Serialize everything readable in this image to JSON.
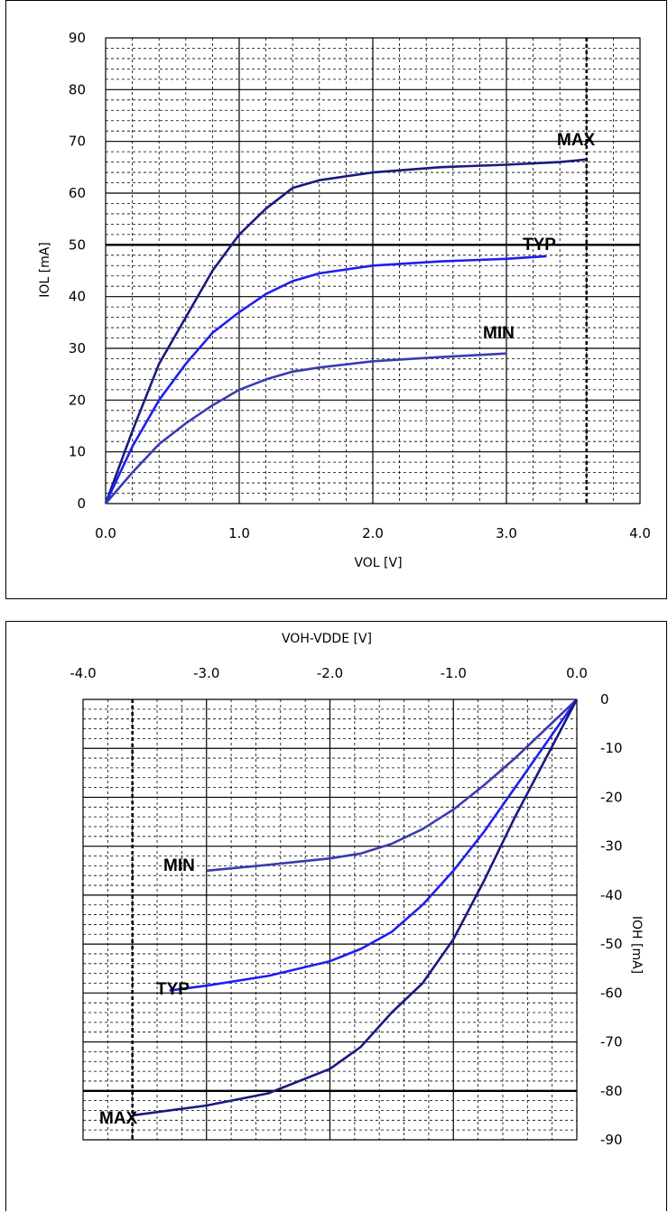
{
  "chart_data": [
    {
      "type": "line",
      "xlabel": "VOL [V]",
      "ylabel": "IOL [mA]",
      "xlim": [
        0,
        4.0
      ],
      "ylim": [
        0,
        90
      ],
      "xticks": [
        "0.0",
        "1.0",
        "2.0",
        "3.0",
        "4.0"
      ],
      "yticks": [
        "0",
        "10",
        "20",
        "30",
        "40",
        "50",
        "60",
        "70",
        "80",
        "90"
      ],
      "grid": true,
      "series": [
        {
          "name": "MAX",
          "color": "#1a1a80",
          "x": [
            0,
            0.2,
            0.4,
            0.6,
            0.8,
            1.0,
            1.2,
            1.4,
            1.6,
            2.0,
            2.5,
            3.0,
            3.4,
            3.6
          ],
          "y": [
            0,
            14,
            27,
            36,
            45,
            52,
            57,
            61,
            62.5,
            64,
            65,
            65.5,
            66,
            66.5
          ]
        },
        {
          "name": "TYP",
          "color": "#1f1ff0",
          "x": [
            0,
            0.2,
            0.4,
            0.6,
            0.8,
            1.0,
            1.2,
            1.4,
            1.6,
            2.0,
            2.5,
            3.0,
            3.3
          ],
          "y": [
            0,
            11,
            20,
            27,
            33,
            37,
            40.5,
            43,
            44.5,
            46,
            46.8,
            47.3,
            47.8
          ]
        },
        {
          "name": "MIN",
          "color": "#3b3bb0",
          "x": [
            0,
            0.2,
            0.4,
            0.6,
            0.8,
            1.0,
            1.2,
            1.4,
            1.6,
            2.0,
            2.5,
            3.0
          ],
          "y": [
            0,
            6,
            11.5,
            15.5,
            19,
            22,
            24,
            25.5,
            26.3,
            27.5,
            28.3,
            29
          ]
        }
      ]
    },
    {
      "type": "line",
      "xlabel": "VOH-VDDE [V]",
      "ylabel": "IOH [mA]",
      "xlim": [
        -4.0,
        0.0
      ],
      "ylim": [
        -90,
        0
      ],
      "xticks": [
        "-4.0",
        "-3.0",
        "-2.0",
        "-1.0",
        "0.0"
      ],
      "yticks": [
        "0",
        "-10",
        "-20",
        "-30",
        "-40",
        "-50",
        "-60",
        "-70",
        "-80",
        "-90"
      ],
      "grid": true,
      "series": [
        {
          "name": "MIN",
          "color": "#3b3bb0",
          "x": [
            0,
            -0.25,
            -0.5,
            -0.75,
            -1.0,
            -1.25,
            -1.5,
            -1.75,
            -2.0,
            -2.5,
            -3.0
          ],
          "y": [
            0,
            -6,
            -12,
            -17.5,
            -22.5,
            -26.5,
            -29.5,
            -31.5,
            -32.5,
            -33.8,
            -35
          ]
        },
        {
          "name": "TYP",
          "color": "#1f1ff0",
          "x": [
            0,
            -0.25,
            -0.5,
            -0.75,
            -1.0,
            -1.25,
            -1.5,
            -1.75,
            -2.0,
            -2.5,
            -3.0,
            -3.3
          ],
          "y": [
            0,
            -9,
            -18,
            -27,
            -35,
            -42,
            -47.5,
            -51,
            -53.5,
            -56.5,
            -58.5,
            -59.5
          ]
        },
        {
          "name": "MAX",
          "color": "#1a1a80",
          "x": [
            0,
            -0.25,
            -0.5,
            -0.75,
            -1.0,
            -1.25,
            -1.5,
            -1.75,
            -2.0,
            -2.5,
            -3.0,
            -3.6
          ],
          "y": [
            0,
            -12,
            -24,
            -37,
            -49,
            -58,
            -64,
            -71,
            -75.5,
            -80.5,
            -83,
            -85
          ]
        }
      ]
    }
  ],
  "labels": {
    "chart1": {
      "max": "MAX",
      "typ": "TYP",
      "min": "MIN"
    },
    "chart2": {
      "max": "MAX",
      "typ": "TYP",
      "min": "MIN"
    }
  }
}
